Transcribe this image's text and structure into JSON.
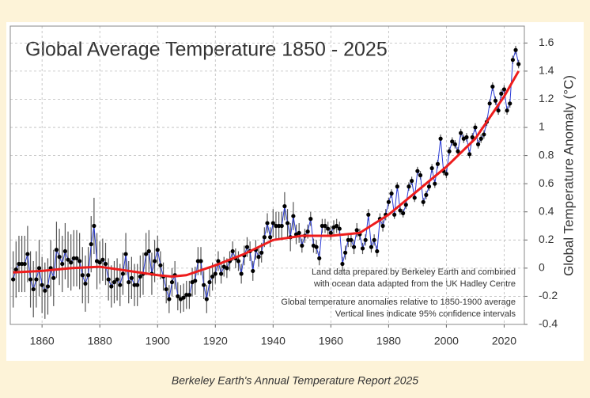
{
  "chart_data": {
    "type": "line",
    "title": "Global Average Temperature 1850 - 2025",
    "y_label": "Global Temperature  Anomaly  (°C)",
    "caption": "Berkeley Earth's Annual Temperature Report 2025",
    "annotations": [
      "Land data prepared by Berkeley Earth and combined",
      "with ocean data adapted from the UK Hadley Centre",
      "Global temperature anomalies relative to 1850-1900 average",
      "Vertical lines indicate 95% confidence intervals"
    ],
    "xlim": [
      1849,
      2027
    ],
    "xticks": [
      1860,
      1880,
      1900,
      1920,
      1940,
      1960,
      1980,
      2000,
      2020
    ],
    "ylim": [
      -0.4,
      1.72
    ],
    "yticks": [
      -0.4,
      -0.2,
      0,
      0.2,
      0.4,
      0.6,
      0.8,
      1,
      1.2,
      1.4,
      1.6
    ],
    "grid": true,
    "series": [
      {
        "color": "#2a3bd6",
        "marker_color": "#000000",
        "error_color": "#555555",
        "x": [
          1850,
          1851,
          1852,
          1853,
          1854,
          1855,
          1856,
          1857,
          1858,
          1859,
          1860,
          1861,
          1862,
          1863,
          1864,
          1865,
          1866,
          1867,
          1868,
          1869,
          1870,
          1871,
          1872,
          1873,
          1874,
          1875,
          1876,
          1877,
          1878,
          1879,
          1880,
          1881,
          1882,
          1883,
          1884,
          1885,
          1886,
          1887,
          1888,
          1889,
          1890,
          1891,
          1892,
          1893,
          1894,
          1895,
          1896,
          1897,
          1898,
          1899,
          1900,
          1901,
          1902,
          1903,
          1904,
          1905,
          1906,
          1907,
          1908,
          1909,
          1910,
          1911,
          1912,
          1913,
          1914,
          1915,
          1916,
          1917,
          1918,
          1919,
          1920,
          1921,
          1922,
          1923,
          1924,
          1925,
          1926,
          1927,
          1928,
          1929,
          1930,
          1931,
          1932,
          1933,
          1934,
          1935,
          1936,
          1937,
          1938,
          1939,
          1940,
          1941,
          1942,
          1943,
          1944,
          1945,
          1946,
          1947,
          1948,
          1949,
          1950,
          1951,
          1952,
          1953,
          1954,
          1955,
          1956,
          1957,
          1958,
          1959,
          1960,
          1961,
          1962,
          1963,
          1964,
          1965,
          1966,
          1967,
          1968,
          1969,
          1970,
          1971,
          1972,
          1973,
          1974,
          1975,
          1976,
          1977,
          1978,
          1979,
          1980,
          1981,
          1982,
          1983,
          1984,
          1985,
          1986,
          1987,
          1988,
          1989,
          1990,
          1991,
          1992,
          1993,
          1994,
          1995,
          1996,
          1997,
          1998,
          1999,
          2000,
          2001,
          2002,
          2003,
          2004,
          2005,
          2006,
          2007,
          2008,
          2009,
          2010,
          2011,
          2012,
          2013,
          2014,
          2015,
          2016,
          2017,
          2018,
          2019,
          2020,
          2021,
          2022,
          2023,
          2024,
          2025
        ],
        "values": [
          -0.08,
          -0.01,
          0.03,
          0.03,
          0.03,
          0.1,
          -0.08,
          -0.15,
          -0.08,
          0.0,
          -0.12,
          -0.16,
          -0.13,
          0.0,
          -0.07,
          0.13,
          0.08,
          0.03,
          0.12,
          0.06,
          0.04,
          0.07,
          0.07,
          0.05,
          -0.05,
          -0.11,
          -0.05,
          0.17,
          0.3,
          0.05,
          0.04,
          0.06,
          0.03,
          -0.08,
          -0.13,
          -0.1,
          -0.08,
          -0.12,
          -0.04,
          0.1,
          -0.1,
          -0.07,
          -0.12,
          -0.12,
          -0.06,
          -0.04,
          0.1,
          0.12,
          -0.04,
          0.05,
          0.13,
          0.02,
          -0.06,
          -0.15,
          -0.22,
          -0.1,
          -0.05,
          -0.2,
          -0.22,
          -0.21,
          -0.19,
          -0.19,
          -0.1,
          -0.09,
          0.05,
          0.05,
          -0.12,
          -0.22,
          -0.1,
          -0.06,
          -0.04,
          0.05,
          -0.04,
          0.01,
          0.0,
          0.05,
          0.12,
          0.07,
          0.05,
          -0.04,
          0.09,
          0.15,
          0.12,
          -0.02,
          0.13,
          0.08,
          0.11,
          0.22,
          0.32,
          0.22,
          0.32,
          0.3,
          0.3,
          0.3,
          0.44,
          0.32,
          0.22,
          0.37,
          0.24,
          0.25,
          0.16,
          0.23,
          0.26,
          0.35,
          0.16,
          0.15,
          0.07,
          0.3,
          0.3,
          0.28,
          0.25,
          0.29,
          0.3,
          0.28,
          0.03,
          0.11,
          0.2,
          0.2,
          0.15,
          0.27,
          0.24,
          0.14,
          0.2,
          0.38,
          0.15,
          0.2,
          0.12,
          0.35,
          0.3,
          0.38,
          0.47,
          0.53,
          0.38,
          0.58,
          0.41,
          0.39,
          0.45,
          0.58,
          0.62,
          0.5,
          0.69,
          0.66,
          0.47,
          0.52,
          0.58,
          0.71,
          0.6,
          0.74,
          0.92,
          0.69,
          0.67,
          0.83,
          0.9,
          0.88,
          0.83,
          0.96,
          0.92,
          0.93,
          0.81,
          0.93,
          1.0,
          0.88,
          0.92,
          0.95,
          1.04,
          1.17,
          1.29,
          1.19,
          1.12,
          1.24,
          1.27,
          1.12,
          1.17,
          1.48,
          1.55,
          1.45
        ],
        "errors": [
          0.2,
          0.2,
          0.2,
          0.2,
          0.2,
          0.2,
          0.2,
          0.2,
          0.2,
          0.2,
          0.2,
          0.2,
          0.2,
          0.2,
          0.2,
          0.2,
          0.2,
          0.2,
          0.2,
          0.2,
          0.2,
          0.2,
          0.2,
          0.2,
          0.2,
          0.2,
          0.2,
          0.2,
          0.2,
          0.2,
          0.15,
          0.15,
          0.15,
          0.15,
          0.15,
          0.15,
          0.15,
          0.15,
          0.15,
          0.15,
          0.15,
          0.15,
          0.15,
          0.15,
          0.15,
          0.15,
          0.15,
          0.15,
          0.15,
          0.15,
          0.1,
          0.1,
          0.1,
          0.1,
          0.1,
          0.1,
          0.1,
          0.1,
          0.1,
          0.1,
          0.1,
          0.1,
          0.1,
          0.1,
          0.1,
          0.1,
          0.1,
          0.1,
          0.1,
          0.1,
          0.07,
          0.07,
          0.07,
          0.07,
          0.07,
          0.07,
          0.07,
          0.07,
          0.07,
          0.07,
          0.07,
          0.07,
          0.07,
          0.07,
          0.07,
          0.07,
          0.07,
          0.07,
          0.07,
          0.07,
          0.1,
          0.1,
          0.1,
          0.1,
          0.1,
          0.1,
          0.1,
          0.1,
          0.07,
          0.07,
          0.05,
          0.05,
          0.05,
          0.05,
          0.05,
          0.05,
          0.05,
          0.05,
          0.05,
          0.05,
          0.05,
          0.05,
          0.05,
          0.05,
          0.05,
          0.05,
          0.05,
          0.05,
          0.05,
          0.05,
          0.04,
          0.04,
          0.04,
          0.04,
          0.04,
          0.04,
          0.04,
          0.04,
          0.04,
          0.04,
          0.03,
          0.03,
          0.03,
          0.03,
          0.03,
          0.03,
          0.03,
          0.03,
          0.03,
          0.03,
          0.03,
          0.03,
          0.03,
          0.03,
          0.03,
          0.03,
          0.03,
          0.03,
          0.03,
          0.03,
          0.03,
          0.03,
          0.03,
          0.03,
          0.03,
          0.03,
          0.03,
          0.03,
          0.03,
          0.03,
          0.03,
          0.03,
          0.03,
          0.03,
          0.03,
          0.03,
          0.03,
          0.03,
          0.03,
          0.03,
          0.03,
          0.03,
          0.03,
          0.03,
          0.03,
          0.03
        ]
      },
      {
        "color": "#ee1c1c",
        "x": [
          1850,
          1860,
          1870,
          1880,
          1890,
          1900,
          1905,
          1910,
          1920,
          1930,
          1940,
          1950,
          1960,
          1970,
          1980,
          1990,
          2000,
          2010,
          2020,
          2025
        ],
        "values": [
          -0.03,
          -0.02,
          0.0,
          0.01,
          -0.02,
          -0.05,
          -0.06,
          -0.05,
          0.02,
          0.1,
          0.2,
          0.23,
          0.23,
          0.25,
          0.38,
          0.55,
          0.72,
          0.92,
          1.22,
          1.4
        ]
      }
    ]
  }
}
